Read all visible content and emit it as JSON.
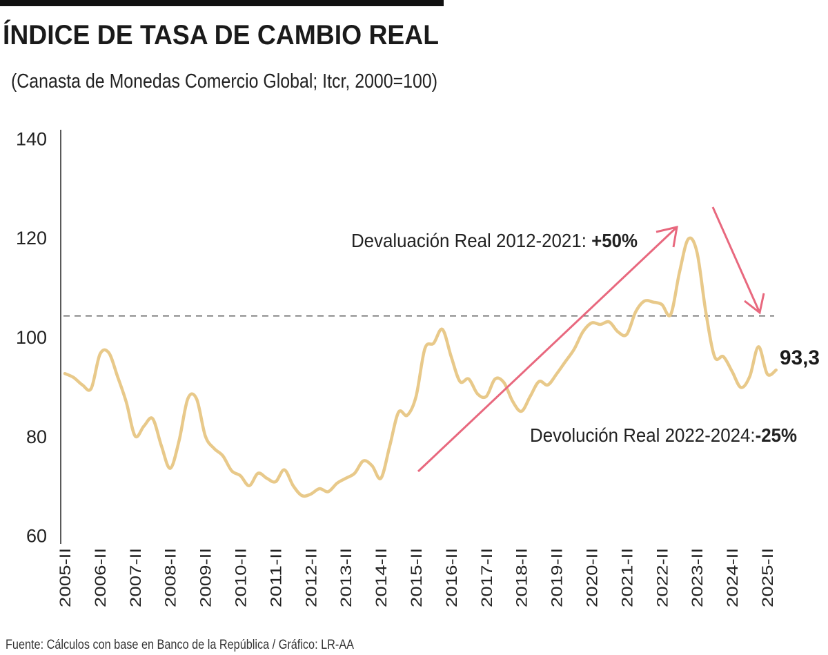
{
  "header": {
    "title": "ÍNDICE DE TASA DE CAMBIO REAL",
    "subtitle": "(Canasta de Monedas Comercio Global; Itcr, 2000=100)"
  },
  "footer": {
    "source": "Fuente: Cálculos con base en Banco de la República  / Gráfico: LR-AA"
  },
  "colors": {
    "series": "#e8c98a",
    "arrow": "#e8687e",
    "reference_line": "#555555",
    "title_bar": "#111111"
  },
  "chart_data": {
    "type": "line",
    "title": "ÍNDICE DE TASA DE CAMBIO REAL",
    "subtitle": "(Canasta de Monedas Comercio Global; Itcr, 2000=100)",
    "xlabel": "",
    "ylabel": "",
    "ylim": [
      60,
      140
    ],
    "yticks": [
      "60",
      "80",
      "100",
      "120",
      "140"
    ],
    "ytick_values": [
      60,
      80,
      100,
      120,
      140
    ],
    "xticks": [
      "2005-II",
      "2006-II",
      "2007-II",
      "2008-II",
      "2009-II",
      "2010-II",
      "2011-II",
      "2012-II",
      "2013-II",
      "2014-II",
      "2015-II",
      "2016-II",
      "2017-II",
      "2018-II",
      "2019-II",
      "2020-II",
      "2021-II",
      "2022-II",
      "2023-II",
      "2024-II",
      "2025-II"
    ],
    "grid": false,
    "x_start": "2005-II",
    "x_frequency": "quarterly",
    "values": [
      92.6,
      91.8,
      90.3,
      89.6,
      96.5,
      96.8,
      92,
      86.8,
      80,
      82,
      83.5,
      78,
      73.5,
      79,
      87.5,
      87.5,
      80,
      77.5,
      76,
      73,
      72,
      70,
      72.5,
      71.5,
      70.8,
      73.2,
      70,
      68,
      68.3,
      69.4,
      68.8,
      70.5,
      71.5,
      72.5,
      75,
      74,
      71.5,
      78,
      84.8,
      84.2,
      88,
      97.6,
      98.7,
      101.5,
      96,
      91,
      91.5,
      88.5,
      88,
      91.5,
      90.8,
      87,
      85,
      88,
      91,
      90.3,
      92.5,
      95,
      97.5,
      101,
      102.8,
      102.5,
      103,
      101,
      100.5,
      105,
      107.2,
      107,
      106.5,
      104.5,
      113,
      119.7,
      117,
      105,
      96,
      96,
      93,
      89.8,
      92,
      98,
      92.5,
      93.3
    ],
    "reference_line": 104.2,
    "end_label": "93,3",
    "annotations": [
      {
        "text": "Devaluación Real 2012-2021: ",
        "bold": "+50%",
        "arrow": "up"
      },
      {
        "text": "Devolución Real 2022-2024:",
        "bold": "-25%",
        "arrow": "down"
      }
    ]
  }
}
